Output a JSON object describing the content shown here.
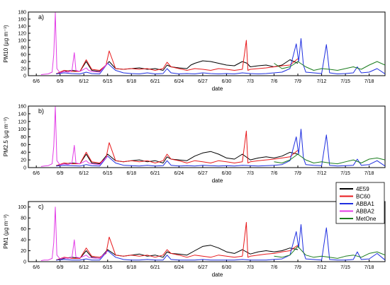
{
  "chart_data": [
    {
      "type": "line",
      "panel_label": "a)",
      "xlabel": "date",
      "ylabel": "PM10 (µg m⁻³)",
      "ylim": [
        0,
        180
      ],
      "yticks": [
        0,
        20,
        40,
        60,
        80,
        100,
        120,
        140,
        160,
        180
      ],
      "xticks": [
        "6/6",
        "6/9",
        "6/12",
        "6/15",
        "6/18",
        "6/21",
        "6/24",
        "6/27",
        "6/30",
        "7/3",
        "7/6",
        "7/9",
        "7/12",
        "7/15",
        "7/18"
      ],
      "series": [
        {
          "name": "4E59",
          "color": "#000000",
          "x": [
            8.5,
            9.5,
            10.5,
            11.5,
            12.3,
            13,
            14,
            14.8,
            15.2,
            16,
            17,
            18,
            19,
            20,
            21,
            22,
            22.5,
            23,
            24,
            25,
            25.5,
            26,
            27,
            28,
            29,
            30,
            31,
            32,
            32.6,
            33,
            34,
            35,
            36,
            37,
            38,
            39
          ],
          "y": [
            5,
            12,
            15,
            12,
            40,
            15,
            12,
            30,
            40,
            20,
            18,
            20,
            22,
            18,
            20,
            15,
            30,
            25,
            22,
            20,
            30,
            35,
            42,
            40,
            35,
            30,
            28,
            40,
            35,
            25,
            28,
            30,
            25,
            30,
            45,
            35
          ]
        },
        {
          "name": "BC60",
          "color": "#e8191c",
          "x": [
            8.5,
            9.5,
            10.5,
            11.5,
            12.3,
            13,
            14,
            14.8,
            15.2,
            16,
            17,
            18,
            19,
            20,
            21,
            22,
            22.5,
            23,
            24,
            25,
            26,
            27,
            28,
            29,
            30,
            31,
            32,
            32.5,
            32.7,
            33,
            34,
            35,
            36,
            37,
            38,
            39
          ],
          "y": [
            5,
            15,
            12,
            12,
            45,
            18,
            15,
            30,
            70,
            20,
            18,
            20,
            18,
            20,
            15,
            20,
            38,
            25,
            20,
            15,
            20,
            18,
            15,
            20,
            18,
            15,
            18,
            100,
            15,
            18,
            20,
            22,
            25,
            28,
            30,
            48
          ]
        },
        {
          "name": "ABBA1",
          "color": "#1f2fe0",
          "x": [
            8.5,
            9.5,
            10.5,
            11.5,
            12.3,
            13,
            14,
            15,
            16,
            17,
            18,
            19,
            20,
            21,
            22,
            22.5,
            23,
            24,
            25,
            26,
            27,
            28,
            29,
            30,
            31,
            32,
            33,
            34,
            35,
            36,
            37,
            38,
            38.8,
            39.1,
            39.4,
            39.7,
            40,
            41,
            42,
            42.6,
            43,
            44,
            45,
            46,
            46.5,
            47,
            48,
            49,
            50
          ],
          "y": [
            5,
            8,
            6,
            5,
            10,
            6,
            5,
            35,
            15,
            8,
            6,
            5,
            8,
            5,
            6,
            20,
            8,
            5,
            6,
            5,
            8,
            6,
            5,
            6,
            5,
            8,
            6,
            5,
            6,
            8,
            10,
            20,
            90,
            40,
            105,
            30,
            10,
            8,
            6,
            88,
            8,
            5,
            6,
            8,
            25,
            8,
            10,
            20,
            5
          ]
        },
        {
          "name": "ABBA2",
          "color": "#e23ce6",
          "x": [
            6.6,
            7,
            7.5,
            8,
            8.2,
            8.4,
            8.6,
            9,
            9.5,
            10,
            10.5,
            10.8,
            11,
            11.5,
            12,
            12.3,
            12.6,
            13,
            14,
            15
          ],
          "y": [
            3,
            4,
            5,
            10,
            60,
            178,
            20,
            8,
            12,
            10,
            15,
            65,
            15,
            12,
            18,
            22,
            15,
            12,
            10,
            35
          ]
        },
        {
          "name": "MetOne",
          "color": "#1b7d1f",
          "x": [
            36,
            37,
            38,
            39,
            40,
            41,
            42,
            43,
            44,
            45,
            46,
            47,
            48,
            49,
            50
          ],
          "y": [
            35,
            20,
            25,
            40,
            25,
            15,
            20,
            18,
            15,
            20,
            25,
            18,
            30,
            40,
            30
          ]
        }
      ]
    },
    {
      "type": "line",
      "panel_label": "b)",
      "xlabel": "date",
      "ylabel": "PM2.5 (µg m⁻³)",
      "ylim": [
        0,
        160
      ],
      "yticks": [
        0,
        20,
        40,
        60,
        80,
        100,
        120,
        140,
        160
      ],
      "xticks": [
        "6/6",
        "6/9",
        "6/12",
        "6/15",
        "6/18",
        "6/21",
        "6/24",
        "6/27",
        "6/30",
        "7/3",
        "7/6",
        "7/9",
        "7/12",
        "7/15",
        "7/18"
      ],
      "series": [
        {
          "name": "4E59",
          "color": "#000000",
          "x": [
            8.5,
            9.5,
            10.5,
            11.5,
            12.3,
            13,
            14,
            15,
            16,
            17,
            18,
            19,
            20,
            21,
            22,
            22.5,
            23,
            24,
            25,
            26,
            27,
            28,
            29,
            30,
            31,
            32,
            33,
            34,
            35,
            36,
            37,
            38,
            39
          ],
          "y": [
            5,
            10,
            12,
            10,
            35,
            12,
            10,
            35,
            18,
            15,
            18,
            20,
            15,
            18,
            12,
            28,
            22,
            20,
            18,
            30,
            38,
            42,
            35,
            25,
            22,
            35,
            20,
            25,
            28,
            25,
            30,
            40,
            35
          ]
        },
        {
          "name": "BC60",
          "color": "#e8191c",
          "x": [
            8.5,
            9.5,
            10.5,
            11.5,
            12.3,
            13,
            14,
            14.8,
            15.2,
            16,
            17,
            18,
            19,
            20,
            21,
            22,
            22.5,
            23,
            24,
            25,
            26,
            27,
            28,
            29,
            30,
            31,
            32,
            32.5,
            32.7,
            33,
            34,
            35,
            36,
            37,
            38,
            39
          ],
          "y": [
            5,
            12,
            10,
            10,
            40,
            15,
            12,
            25,
            65,
            18,
            15,
            18,
            15,
            18,
            12,
            18,
            35,
            22,
            18,
            12,
            18,
            15,
            12,
            18,
            15,
            12,
            15,
            95,
            12,
            15,
            18,
            20,
            22,
            25,
            28,
            45
          ]
        },
        {
          "name": "ABBA1",
          "color": "#1f2fe0",
          "x": [
            8.5,
            9.5,
            10.5,
            11.5,
            12.3,
            13,
            14,
            15,
            16,
            17,
            18,
            19,
            20,
            21,
            22,
            22.5,
            23,
            24,
            25,
            26,
            27,
            28,
            29,
            30,
            31,
            32,
            33,
            34,
            35,
            36,
            37,
            38,
            38.8,
            39.1,
            39.4,
            39.7,
            40,
            41,
            42,
            42.6,
            43,
            44,
            45,
            46,
            46.5,
            47,
            48,
            49,
            50
          ],
          "y": [
            4,
            6,
            5,
            4,
            8,
            5,
            4,
            30,
            12,
            6,
            5,
            4,
            6,
            4,
            5,
            18,
            6,
            4,
            5,
            4,
            6,
            5,
            4,
            5,
            4,
            6,
            5,
            4,
            5,
            6,
            8,
            18,
            80,
            35,
            100,
            25,
            8,
            6,
            5,
            85,
            6,
            4,
            5,
            6,
            22,
            6,
            8,
            18,
            4
          ]
        },
        {
          "name": "ABBA2",
          "color": "#e23ce6",
          "x": [
            6.6,
            7,
            7.5,
            8,
            8.2,
            8.4,
            8.6,
            9,
            9.5,
            10,
            10.5,
            10.8,
            11,
            11.5,
            12,
            12.3,
            12.6,
            13,
            14,
            15
          ],
          "y": [
            3,
            4,
            5,
            10,
            55,
            158,
            18,
            7,
            10,
            8,
            12,
            58,
            12,
            10,
            15,
            18,
            12,
            10,
            8,
            30
          ]
        },
        {
          "name": "MetOne",
          "color": "#1b7d1f",
          "x": [
            36,
            37,
            38,
            39,
            40,
            41,
            42,
            43,
            44,
            45,
            46,
            47,
            48,
            49,
            50
          ],
          "y": [
            15,
            12,
            20,
            35,
            20,
            12,
            15,
            12,
            10,
            15,
            20,
            12,
            22,
            25,
            20
          ]
        }
      ]
    },
    {
      "type": "line",
      "panel_label": "c)",
      "xlabel": "date",
      "ylabel": "PM1 (µg m⁻³)",
      "ylim": [
        0,
        110
      ],
      "yticks": [
        0,
        20,
        40,
        60,
        80,
        100
      ],
      "xticks": [
        "6/6",
        "6/9",
        "6/12",
        "6/15",
        "6/18",
        "6/21",
        "6/24",
        "6/27",
        "6/30",
        "7/3",
        "7/6",
        "7/9",
        "7/12",
        "7/15",
        "7/18"
      ],
      "legend": {
        "position": "right",
        "entries": [
          "4E59",
          "BC60",
          "ABBA1",
          "ABBA2",
          "MetOne"
        ]
      },
      "series": [
        {
          "name": "4E59",
          "color": "#000000",
          "x": [
            8.5,
            9.5,
            10.5,
            11.5,
            12.3,
            13,
            14,
            15,
            16,
            17,
            18,
            19,
            20,
            21,
            22,
            22.5,
            23,
            24,
            25,
            26,
            27,
            28,
            29,
            30,
            31,
            32,
            33,
            34,
            35,
            36,
            37,
            38,
            39
          ],
          "y": [
            3,
            6,
            8,
            6,
            20,
            8,
            6,
            22,
            12,
            10,
            12,
            14,
            10,
            12,
            8,
            18,
            15,
            14,
            12,
            20,
            28,
            30,
            25,
            18,
            15,
            22,
            14,
            18,
            20,
            18,
            20,
            25,
            22
          ]
        },
        {
          "name": "BC60",
          "color": "#e8191c",
          "x": [
            8.5,
            9.5,
            10.5,
            11.5,
            12.3,
            13,
            14,
            14.8,
            15.2,
            16,
            17,
            18,
            19,
            20,
            21,
            22,
            22.5,
            23,
            24,
            25,
            26,
            27,
            28,
            29,
            30,
            31,
            32,
            32.5,
            32.7,
            33,
            34,
            35,
            36,
            37,
            38,
            39
          ],
          "y": [
            3,
            8,
            6,
            6,
            25,
            10,
            8,
            15,
            45,
            12,
            10,
            12,
            10,
            12,
            8,
            12,
            22,
            15,
            12,
            8,
            12,
            10,
            8,
            12,
            10,
            8,
            10,
            72,
            8,
            10,
            12,
            14,
            15,
            18,
            20,
            30
          ]
        },
        {
          "name": "ABBA1",
          "color": "#1f2fe0",
          "x": [
            8.5,
            9.5,
            10.5,
            11.5,
            12.3,
            13,
            14,
            15,
            16,
            17,
            18,
            19,
            20,
            21,
            22,
            22.5,
            23,
            24,
            25,
            26,
            27,
            28,
            29,
            30,
            31,
            32,
            33,
            34,
            35,
            36,
            37,
            38,
            38.8,
            39.1,
            39.4,
            39.7,
            40,
            41,
            42,
            42.6,
            43,
            44,
            45,
            46,
            46.5,
            47,
            48,
            49,
            50
          ],
          "y": [
            3,
            4,
            3,
            3,
            5,
            3,
            3,
            20,
            8,
            4,
            3,
            3,
            4,
            3,
            3,
            12,
            4,
            3,
            3,
            3,
            4,
            3,
            3,
            3,
            3,
            4,
            3,
            3,
            3,
            4,
            5,
            12,
            55,
            25,
            68,
            18,
            5,
            4,
            3,
            62,
            4,
            3,
            3,
            4,
            18,
            4,
            5,
            15,
            3
          ]
        },
        {
          "name": "ABBA2",
          "color": "#e23ce6",
          "x": [
            6.6,
            7,
            7.5,
            8,
            8.2,
            8.4,
            8.6,
            9,
            9.5,
            10,
            10.5,
            10.8,
            11,
            11.5,
            12,
            12.3,
            12.6,
            13,
            14,
            15
          ],
          "y": [
            2,
            3,
            3,
            6,
            35,
            100,
            12,
            5,
            7,
            6,
            8,
            40,
            8,
            7,
            10,
            12,
            8,
            7,
            6,
            20
          ]
        },
        {
          "name": "MetOne",
          "color": "#1b7d1f",
          "x": [
            36,
            37,
            38,
            39,
            40,
            41,
            42,
            43,
            44,
            45,
            46,
            47,
            48,
            49,
            50
          ],
          "y": [
            10,
            8,
            12,
            28,
            12,
            8,
            10,
            8,
            6,
            10,
            12,
            8,
            15,
            18,
            12
          ]
        }
      ]
    }
  ]
}
